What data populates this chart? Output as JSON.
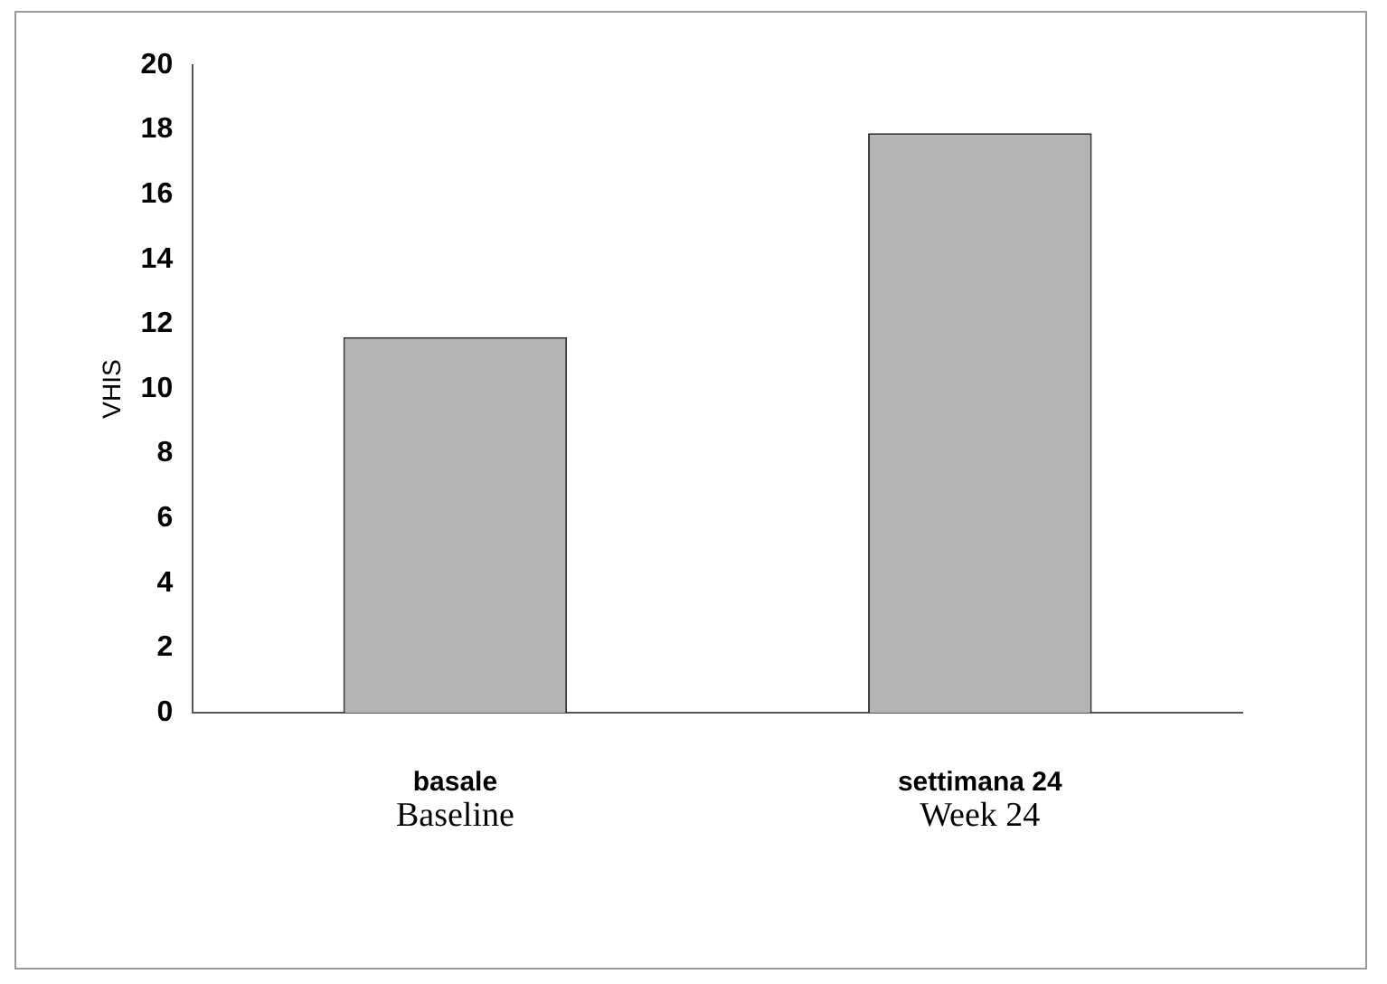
{
  "chart_data": {
    "type": "bar",
    "ylabel": "VHIS",
    "categories": [
      "basale",
      "settimana 24"
    ],
    "values": [
      11.6,
      17.9
    ],
    "color": "#b4b4b4",
    "ylim": [
      0,
      20
    ],
    "yticks": [
      0,
      2,
      4,
      6,
      8,
      10,
      12,
      14,
      16,
      18,
      20
    ],
    "grid": false,
    "legend": false,
    "annotations": [
      "Baseline",
      "Week 24"
    ]
  }
}
